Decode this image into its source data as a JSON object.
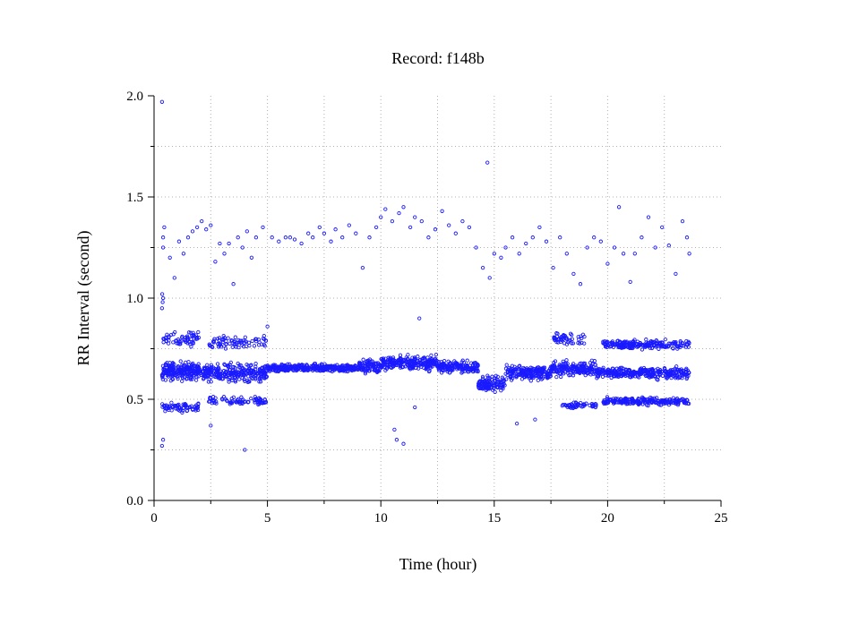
{
  "chart_data": {
    "type": "scatter",
    "title": "Record:  f148b",
    "xlabel": "Time (hour)",
    "ylabel": "RR Interval (second)",
    "xlim": [
      0,
      25
    ],
    "ylim": [
      0,
      2
    ],
    "xticks": [
      "0",
      "5",
      "10",
      "15",
      "20",
      "25"
    ],
    "yticks": [
      "0.0",
      "0.5",
      "1.0",
      "1.5",
      "2.0"
    ],
    "grid": true,
    "marker": "circle",
    "color": "#1a1aff",
    "series": [
      {
        "points": [
          [
            0.35,
            1.97
          ],
          [
            0.35,
            0.27
          ],
          [
            0.4,
            0.3
          ],
          [
            0.35,
            0.95
          ],
          [
            0.38,
            0.98
          ],
          [
            0.4,
            1.0
          ],
          [
            0.36,
            1.02
          ],
          [
            0.4,
            1.25
          ],
          [
            0.4,
            1.3
          ],
          [
            0.45,
            1.35
          ],
          [
            0.7,
            1.2
          ],
          [
            0.9,
            1.1
          ],
          [
            1.1,
            1.28
          ],
          [
            1.3,
            1.22
          ],
          [
            1.5,
            1.3
          ],
          [
            1.7,
            1.33
          ],
          [
            1.9,
            1.35
          ],
          [
            2.1,
            1.38
          ],
          [
            2.3,
            1.34
          ],
          [
            2.5,
            1.36
          ],
          [
            2.7,
            1.18
          ],
          [
            2.9,
            1.27
          ],
          [
            3.1,
            1.22
          ],
          [
            3.3,
            1.27
          ],
          [
            3.5,
            1.07
          ],
          [
            3.7,
            1.3
          ],
          [
            3.9,
            1.25
          ],
          [
            4.1,
            1.33
          ],
          [
            4.3,
            1.2
          ],
          [
            4.5,
            1.3
          ],
          [
            4.8,
            1.35
          ],
          [
            5.2,
            1.3
          ],
          [
            5.5,
            1.28
          ],
          [
            5.8,
            1.3
          ],
          [
            6.0,
            1.3
          ],
          [
            6.2,
            1.29
          ],
          [
            6.5,
            1.27
          ],
          [
            6.8,
            1.32
          ],
          [
            7.0,
            1.3
          ],
          [
            7.3,
            1.35
          ],
          [
            7.5,
            1.32
          ],
          [
            7.8,
            1.28
          ],
          [
            8.0,
            1.34
          ],
          [
            8.3,
            1.3
          ],
          [
            8.6,
            1.36
          ],
          [
            8.9,
            1.32
          ],
          [
            9.2,
            1.15
          ],
          [
            9.5,
            1.3
          ],
          [
            9.8,
            1.35
          ],
          [
            10.0,
            1.4
          ],
          [
            10.2,
            1.44
          ],
          [
            10.5,
            1.38
          ],
          [
            10.8,
            1.42
          ],
          [
            11.0,
            1.45
          ],
          [
            11.3,
            1.35
          ],
          [
            11.5,
            1.4
          ],
          [
            11.8,
            1.38
          ],
          [
            12.1,
            1.3
          ],
          [
            12.4,
            1.34
          ],
          [
            12.7,
            1.43
          ],
          [
            13.0,
            1.36
          ],
          [
            13.3,
            1.32
          ],
          [
            13.6,
            1.38
          ],
          [
            13.9,
            1.35
          ],
          [
            14.2,
            1.25
          ],
          [
            14.5,
            1.15
          ],
          [
            14.7,
            1.67
          ],
          [
            14.8,
            1.1
          ],
          [
            15.0,
            1.22
          ],
          [
            15.3,
            1.2
          ],
          [
            15.5,
            1.25
          ],
          [
            15.8,
            1.3
          ],
          [
            16.1,
            1.22
          ],
          [
            16.4,
            1.27
          ],
          [
            16.7,
            1.3
          ],
          [
            17.0,
            1.35
          ],
          [
            17.3,
            1.28
          ],
          [
            17.6,
            1.15
          ],
          [
            17.9,
            1.3
          ],
          [
            18.2,
            1.22
          ],
          [
            18.5,
            1.12
          ],
          [
            18.8,
            1.07
          ],
          [
            19.1,
            1.25
          ],
          [
            19.4,
            1.3
          ],
          [
            19.7,
            1.28
          ],
          [
            20.0,
            1.17
          ],
          [
            20.3,
            1.25
          ],
          [
            20.5,
            1.45
          ],
          [
            20.7,
            1.22
          ],
          [
            21.0,
            1.08
          ],
          [
            21.2,
            1.22
          ],
          [
            21.5,
            1.3
          ],
          [
            21.8,
            1.4
          ],
          [
            22.1,
            1.25
          ],
          [
            22.4,
            1.35
          ],
          [
            22.7,
            1.26
          ],
          [
            23.0,
            1.12
          ],
          [
            23.3,
            1.38
          ],
          [
            23.5,
            1.3
          ],
          [
            23.6,
            1.22
          ],
          [
            10.6,
            0.35
          ],
          [
            10.7,
            0.3
          ],
          [
            11.0,
            0.28
          ],
          [
            11.5,
            0.46
          ],
          [
            11.7,
            0.9
          ],
          [
            4.0,
            0.25
          ],
          [
            2.5,
            0.37
          ],
          [
            16.0,
            0.38
          ],
          [
            16.8,
            0.4
          ],
          [
            5.0,
            0.86
          ]
        ],
        "bands": [
          {
            "x0": 0.35,
            "x1": 2.0,
            "center": 0.64,
            "spread": 0.06,
            "count": 220
          },
          {
            "x0": 0.35,
            "x1": 2.0,
            "center": 0.46,
            "spread": 0.03,
            "count": 70
          },
          {
            "x0": 0.35,
            "x1": 2.0,
            "center": 0.8,
            "spread": 0.05,
            "count": 60
          },
          {
            "x0": 2.0,
            "x1": 5.0,
            "center": 0.63,
            "spread": 0.06,
            "count": 260
          },
          {
            "x0": 2.4,
            "x1": 5.0,
            "center": 0.49,
            "spread": 0.03,
            "count": 80
          },
          {
            "x0": 2.4,
            "x1": 5.0,
            "center": 0.78,
            "spread": 0.05,
            "count": 80
          },
          {
            "x0": 5.0,
            "x1": 9.0,
            "center": 0.655,
            "spread": 0.025,
            "count": 360
          },
          {
            "x0": 9.0,
            "x1": 10.0,
            "center": 0.66,
            "spread": 0.05,
            "count": 90
          },
          {
            "x0": 10.0,
            "x1": 12.5,
            "center": 0.68,
            "spread": 0.05,
            "count": 240
          },
          {
            "x0": 12.5,
            "x1": 14.3,
            "center": 0.66,
            "spread": 0.04,
            "count": 160
          },
          {
            "x0": 14.3,
            "x1": 15.5,
            "center": 0.58,
            "spread": 0.05,
            "count": 110
          },
          {
            "x0": 15.5,
            "x1": 17.5,
            "center": 0.63,
            "spread": 0.05,
            "count": 180
          },
          {
            "x0": 17.5,
            "x1": 19.5,
            "center": 0.65,
            "spread": 0.05,
            "count": 170
          },
          {
            "x0": 17.6,
            "x1": 19.0,
            "center": 0.8,
            "spread": 0.04,
            "count": 50
          },
          {
            "x0": 18.0,
            "x1": 19.5,
            "center": 0.47,
            "spread": 0.02,
            "count": 50
          },
          {
            "x0": 19.5,
            "x1": 23.6,
            "center": 0.63,
            "spread": 0.04,
            "count": 320
          },
          {
            "x0": 19.8,
            "x1": 23.6,
            "center": 0.77,
            "spread": 0.03,
            "count": 220
          },
          {
            "x0": 19.8,
            "x1": 23.6,
            "center": 0.49,
            "spread": 0.025,
            "count": 220
          }
        ]
      }
    ]
  }
}
